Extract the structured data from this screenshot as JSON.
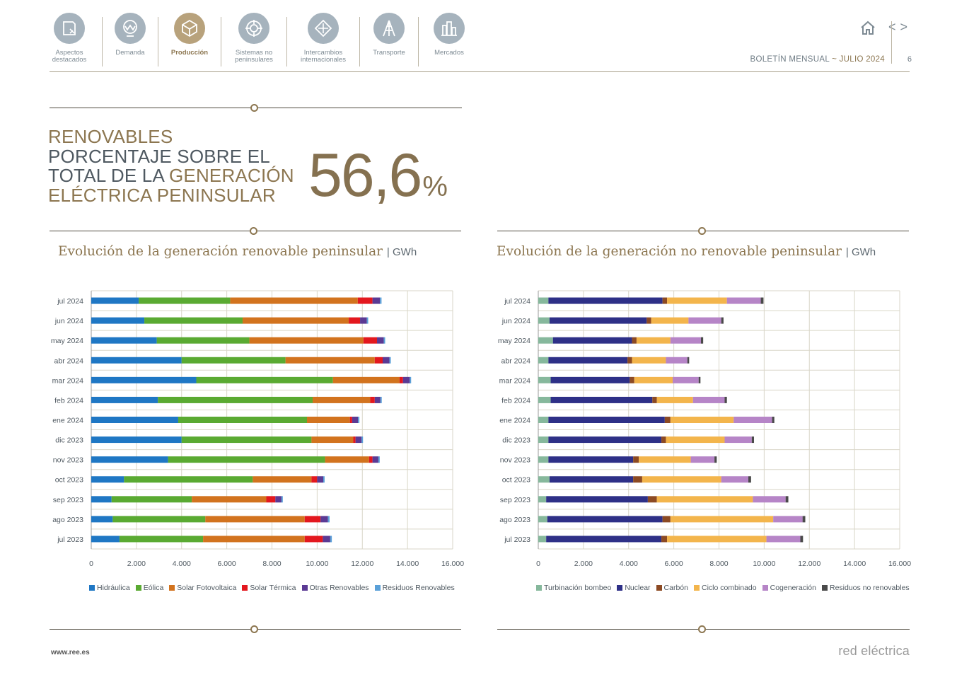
{
  "nav": {
    "items": [
      {
        "label": "Aspectos destacados",
        "active": false,
        "icon": "document-icon"
      },
      {
        "label": "Demanda",
        "active": false,
        "icon": "wave-icon"
      },
      {
        "label": "Producción",
        "active": true,
        "icon": "cube-icon"
      },
      {
        "label": "Sistemas no peninsulares",
        "active": false,
        "icon": "target-icon"
      },
      {
        "label": "Intercambios internacionales",
        "active": false,
        "icon": "diamond-arrows-icon"
      },
      {
        "label": "Transporte",
        "active": false,
        "icon": "tower-icon"
      },
      {
        "label": "Mercados",
        "active": false,
        "icon": "bars-icon"
      }
    ]
  },
  "header": {
    "bulletin": "BOLETÍN MENSUAL",
    "separator": "~",
    "month": "JULIO 2024",
    "page": "6",
    "prev_icon": "chevron-left-icon",
    "next_icon": "chevron-right-icon"
  },
  "kpi": {
    "line1": "RENOVABLES",
    "line2": "PORCENTAJE SOBRE EL",
    "line3a": "TOTAL DE LA ",
    "line3b": "GENERACIÓN",
    "line4": "ELÉCTRICA PENINSULAR",
    "value": "56,6",
    "unit": "%"
  },
  "charts": {
    "renewable": {
      "title": "Evolución de la generación renovable peninsular",
      "unit": "GWh"
    },
    "nonrenewable": {
      "title": "Evolución de la generación no renovable peninsular",
      "unit": "GWh"
    }
  },
  "footer": {
    "url": "www.ree.es",
    "brand": "red eléctrica"
  },
  "colors": {
    "gold": "#8c7650",
    "nav_gray": "#a6b3bd",
    "nav_active": "#b8a27c"
  },
  "chart_data": [
    {
      "type": "bar",
      "orientation": "horizontal",
      "stacked": true,
      "title": "Evolución de la generación renovable peninsular",
      "unit": "GWh",
      "categories": [
        "jul 2024",
        "jun 2024",
        "may 2024",
        "abr 2024",
        "mar 2024",
        "feb 2024",
        "ene 2024",
        "dic 2023",
        "nov 2023",
        "oct 2023",
        "sep 2023",
        "ago 2023",
        "jul 2023"
      ],
      "xlim": [
        0,
        16000
      ],
      "xticks": [
        0,
        2000,
        4000,
        6000,
        8000,
        10000,
        12000,
        14000,
        16000
      ],
      "xtick_labels": [
        "0",
        "2.000",
        "4.000",
        "6.000",
        "8.000",
        "10.000",
        "12.000",
        "14.000",
        "16.000"
      ],
      "legend_position": "bottom",
      "grid": true,
      "series": [
        {
          "name": "Hidráulica",
          "color": "#1f77c4",
          "values": [
            2100,
            2350,
            2900,
            4000,
            4650,
            2950,
            3850,
            4000,
            3400,
            1450,
            900,
            950,
            1250
          ]
        },
        {
          "name": "Eólica",
          "color": "#5aaa32",
          "values": [
            4050,
            4350,
            4100,
            4600,
            6050,
            6850,
            5700,
            5750,
            6950,
            5700,
            3550,
            4100,
            3700
          ]
        },
        {
          "name": "Solar Fotovoltaica",
          "color": "#d2731e",
          "values": [
            5650,
            4700,
            5050,
            3950,
            2950,
            2550,
            1900,
            1850,
            1950,
            2600,
            3300,
            4400,
            4500
          ]
        },
        {
          "name": "Solar Térmica",
          "color": "#e3181e",
          "values": [
            650,
            500,
            600,
            350,
            150,
            200,
            100,
            100,
            150,
            250,
            400,
            700,
            800
          ]
        },
        {
          "name": "Otras Renovables",
          "color": "#5b3a94",
          "values": [
            330,
            300,
            300,
            300,
            300,
            250,
            260,
            270,
            260,
            270,
            270,
            330,
            330
          ]
        },
        {
          "name": "Residuos Renovables",
          "color": "#5aa0d8",
          "values": [
            70,
            60,
            60,
            60,
            60,
            60,
            60,
            60,
            60,
            60,
            60,
            70,
            70
          ]
        }
      ]
    },
    {
      "type": "bar",
      "orientation": "horizontal",
      "stacked": true,
      "title": "Evolución de la generación no renovable peninsular",
      "unit": "GWh",
      "categories": [
        "jul 2024",
        "jun 2024",
        "may 2024",
        "abr 2024",
        "mar 2024",
        "feb 2024",
        "ene 2024",
        "dic 2023",
        "nov 2023",
        "oct 2023",
        "sep 2023",
        "ago 2023",
        "jul 2023"
      ],
      "xlim": [
        0,
        16000
      ],
      "xticks": [
        0,
        2000,
        4000,
        6000,
        8000,
        10000,
        12000,
        14000,
        16000
      ],
      "xtick_labels": [
        "0",
        "2.000",
        "4.000",
        "6.000",
        "8.000",
        "10.000",
        "12.000",
        "14.000",
        "16.000"
      ],
      "legend_position": "bottom",
      "grid": true,
      "series": [
        {
          "name": "Turbinación bombeo",
          "color": "#86b89c",
          "values": [
            450,
            500,
            650,
            450,
            550,
            550,
            450,
            450,
            450,
            500,
            350,
            400,
            350
          ]
        },
        {
          "name": "Nuclear",
          "color": "#2e3087",
          "values": [
            5050,
            4300,
            3500,
            3500,
            3500,
            4500,
            5150,
            5000,
            3750,
            3700,
            4500,
            5100,
            5100
          ]
        },
        {
          "name": "Carbón",
          "color": "#8c4a23",
          "values": [
            200,
            200,
            200,
            200,
            200,
            200,
            250,
            200,
            250,
            400,
            400,
            350,
            250
          ]
        },
        {
          "name": "Ciclo combinado",
          "color": "#f3b54c",
          "values": [
            2650,
            1650,
            1500,
            1500,
            1700,
            1600,
            2800,
            2600,
            2300,
            3500,
            4250,
            4550,
            4400
          ]
        },
        {
          "name": "Cogeneración",
          "color": "#b685c7",
          "values": [
            1500,
            1450,
            1350,
            950,
            1150,
            1400,
            1700,
            1200,
            1050,
            1200,
            1450,
            1300,
            1500
          ]
        },
        {
          "name": "Residuos no renovables",
          "color": "#4a4a4a",
          "values": [
            120,
            100,
            100,
            80,
            80,
            100,
            100,
            100,
            100,
            120,
            120,
            120,
            120
          ]
        }
      ]
    }
  ]
}
